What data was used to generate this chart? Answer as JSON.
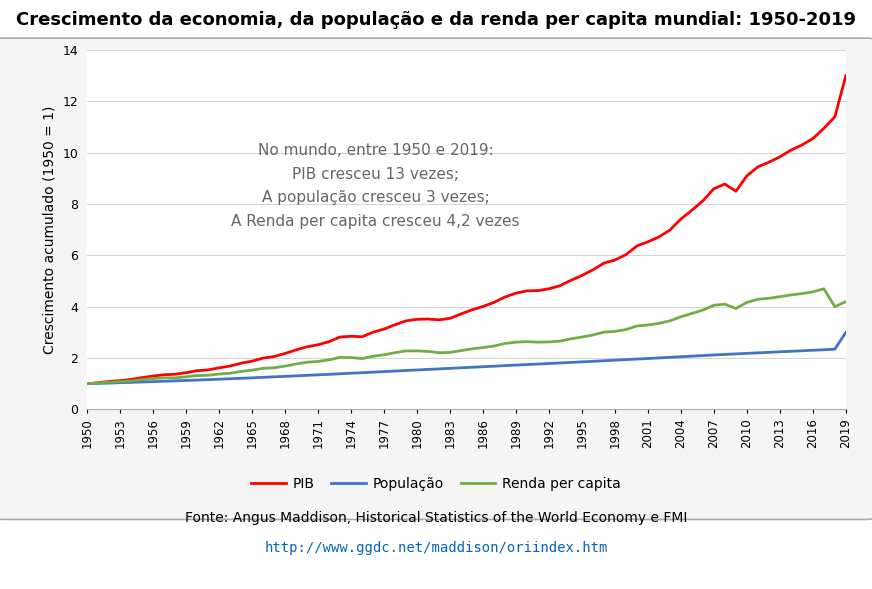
{
  "title": "Crescimento da economia, da população e da renda per capita mundial: 1950-2019",
  "ylabel": "Crescimento acumulado (1950 = 1)",
  "annotation": "No mundo, entre 1950 e 2019:\nPIB cresceu 13 vezes;\nA população cresceu 3 vezes;\nA Renda per capita cresceu 4,2 vezes",
  "footer_text": "Fonte: Angus Maddison, Historical Statistics of the World Economy e FMI",
  "footer_url": "http://www.ggdc.net/maddison/oriindex.htm",
  "years": [
    1950,
    1951,
    1952,
    1953,
    1954,
    1955,
    1956,
    1957,
    1958,
    1959,
    1960,
    1961,
    1962,
    1963,
    1964,
    1965,
    1966,
    1967,
    1968,
    1969,
    1970,
    1971,
    1972,
    1973,
    1974,
    1975,
    1976,
    1977,
    1978,
    1979,
    1980,
    1981,
    1982,
    1983,
    1984,
    1985,
    1986,
    1987,
    1988,
    1989,
    1990,
    1991,
    1992,
    1993,
    1994,
    1995,
    1996,
    1997,
    1998,
    1999,
    2000,
    2001,
    2002,
    2003,
    2004,
    2005,
    2006,
    2007,
    2008,
    2009,
    2010,
    2011,
    2012,
    2013,
    2014,
    2015,
    2016,
    2017,
    2018,
    2019
  ],
  "pib": [
    1.0,
    1.04,
    1.09,
    1.12,
    1.17,
    1.24,
    1.3,
    1.35,
    1.37,
    1.43,
    1.51,
    1.54,
    1.62,
    1.69,
    1.8,
    1.88,
    2.0,
    2.06,
    2.18,
    2.32,
    2.44,
    2.52,
    2.64,
    2.82,
    2.85,
    2.83,
    3.01,
    3.13,
    3.3,
    3.45,
    3.51,
    3.52,
    3.49,
    3.55,
    3.72,
    3.88,
    4.01,
    4.17,
    4.38,
    4.53,
    4.62,
    4.63,
    4.7,
    4.82,
    5.03,
    5.22,
    5.44,
    5.7,
    5.82,
    6.03,
    6.37,
    6.53,
    6.72,
    6.99,
    7.42,
    7.76,
    8.13,
    8.6,
    8.78,
    8.5,
    9.1,
    9.45,
    9.63,
    9.84,
    10.1,
    10.3,
    10.55,
    10.95,
    11.4,
    13.0
  ],
  "population": [
    1.0,
    1.013,
    1.026,
    1.04,
    1.054,
    1.068,
    1.082,
    1.097,
    1.112,
    1.128,
    1.143,
    1.16,
    1.177,
    1.195,
    1.213,
    1.231,
    1.25,
    1.269,
    1.288,
    1.308,
    1.328,
    1.348,
    1.368,
    1.389,
    1.41,
    1.431,
    1.452,
    1.473,
    1.494,
    1.516,
    1.537,
    1.558,
    1.579,
    1.6,
    1.621,
    1.642,
    1.663,
    1.684,
    1.706,
    1.727,
    1.748,
    1.768,
    1.789,
    1.81,
    1.831,
    1.852,
    1.874,
    1.896,
    1.918,
    1.94,
    1.962,
    1.984,
    2.006,
    2.029,
    2.052,
    2.075,
    2.098,
    2.121,
    2.143,
    2.163,
    2.183,
    2.204,
    2.224,
    2.244,
    2.264,
    2.284,
    2.304,
    2.325,
    2.346,
    3.0
  ],
  "renda_per_capita": [
    1.0,
    1.03,
    1.06,
    1.08,
    1.11,
    1.16,
    1.2,
    1.23,
    1.23,
    1.27,
    1.32,
    1.33,
    1.38,
    1.41,
    1.48,
    1.53,
    1.6,
    1.62,
    1.69,
    1.77,
    1.84,
    1.87,
    1.93,
    2.03,
    2.02,
    1.98,
    2.07,
    2.13,
    2.21,
    2.28,
    2.28,
    2.26,
    2.21,
    2.22,
    2.29,
    2.36,
    2.41,
    2.47,
    2.57,
    2.62,
    2.64,
    2.62,
    2.63,
    2.66,
    2.75,
    2.82,
    2.9,
    3.01,
    3.04,
    3.11,
    3.25,
    3.29,
    3.35,
    3.45,
    3.61,
    3.74,
    3.87,
    4.06,
    4.1,
    3.93,
    4.17,
    4.29,
    4.33,
    4.39,
    4.46,
    4.51,
    4.58,
    4.7,
    4.0,
    4.2
  ],
  "pib_color": "#FF0000",
  "pop_color": "#4472C4",
  "rpc_color": "#70AD47",
  "ylim": [
    0,
    14
  ],
  "yticks": [
    0,
    2,
    4,
    6,
    8,
    10,
    12,
    14
  ],
  "xtick_years": [
    1950,
    1953,
    1956,
    1959,
    1962,
    1965,
    1968,
    1971,
    1974,
    1977,
    1980,
    1983,
    1986,
    1989,
    1992,
    1995,
    1998,
    2001,
    2004,
    2007,
    2010,
    2013,
    2016,
    2019
  ],
  "title_fontsize": 13,
  "annotation_fontsize": 11,
  "legend_fontsize": 10,
  "ylabel_fontsize": 10
}
